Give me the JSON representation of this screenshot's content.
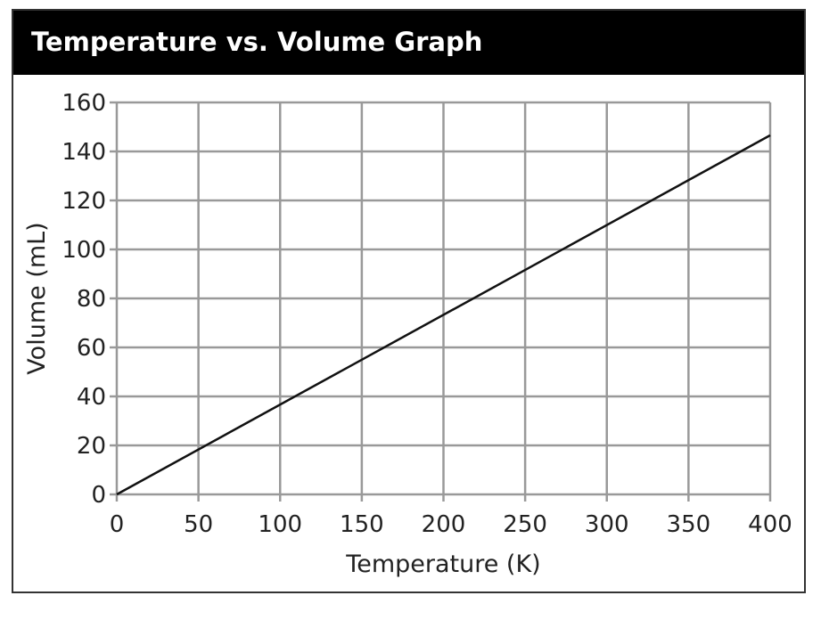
{
  "chart_data": {
    "type": "line",
    "title": "Temperature vs. Volume Graph",
    "xlabel": "Temperature (K)",
    "ylabel": "Volume (mL)",
    "xlim": [
      0,
      400
    ],
    "ylim": [
      0,
      160
    ],
    "x_ticks": [
      0,
      50,
      100,
      150,
      200,
      250,
      300,
      350,
      400
    ],
    "y_ticks": [
      0,
      20,
      40,
      60,
      80,
      100,
      120,
      140,
      160
    ],
    "x_tick_labels": [
      "0",
      "50",
      "100",
      "150",
      "200",
      "250",
      "300",
      "350",
      "400"
    ],
    "y_tick_labels": [
      "0",
      "20",
      "40",
      "60",
      "80",
      "100",
      "120",
      "140",
      "160"
    ],
    "grid": true,
    "series": [
      {
        "name": "Volume",
        "x": [
          0,
          400
        ],
        "y": [
          0,
          146.6
        ],
        "color": "#111111"
      }
    ]
  }
}
